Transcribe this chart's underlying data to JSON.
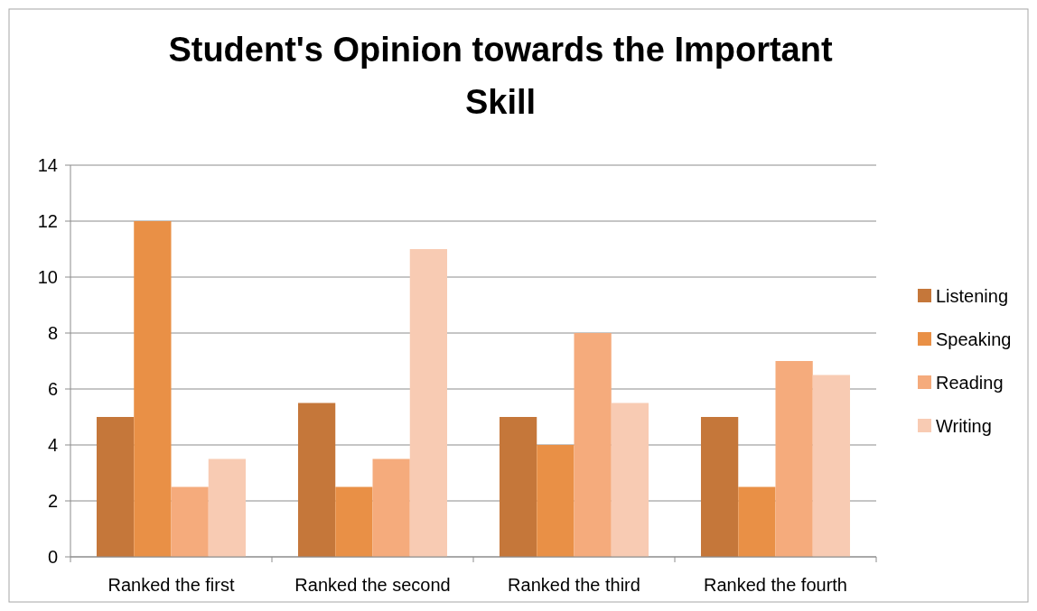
{
  "chart_data": {
    "type": "bar",
    "title": "Student's Opinion towards the Important Skill",
    "categories": [
      "Ranked the first",
      "Ranked the second",
      "Ranked the third",
      "Ranked the fourth"
    ],
    "series": [
      {
        "name": "Listening",
        "color": "#c5773a",
        "values": [
          5,
          5.5,
          5,
          5
        ]
      },
      {
        "name": "Speaking",
        "color": "#e99046",
        "values": [
          12,
          2.5,
          4,
          2.5
        ]
      },
      {
        "name": "Reading",
        "color": "#f5ab7c",
        "values": [
          2.5,
          3.5,
          8,
          7
        ]
      },
      {
        "name": "Writing",
        "color": "#f8cbb3",
        "values": [
          3.5,
          11,
          5.5,
          6.5
        ]
      }
    ],
    "ylim": [
      0,
      14
    ],
    "yticks": [
      0,
      2,
      4,
      6,
      8,
      10,
      12,
      14
    ],
    "grid": "y",
    "legend": "right"
  }
}
